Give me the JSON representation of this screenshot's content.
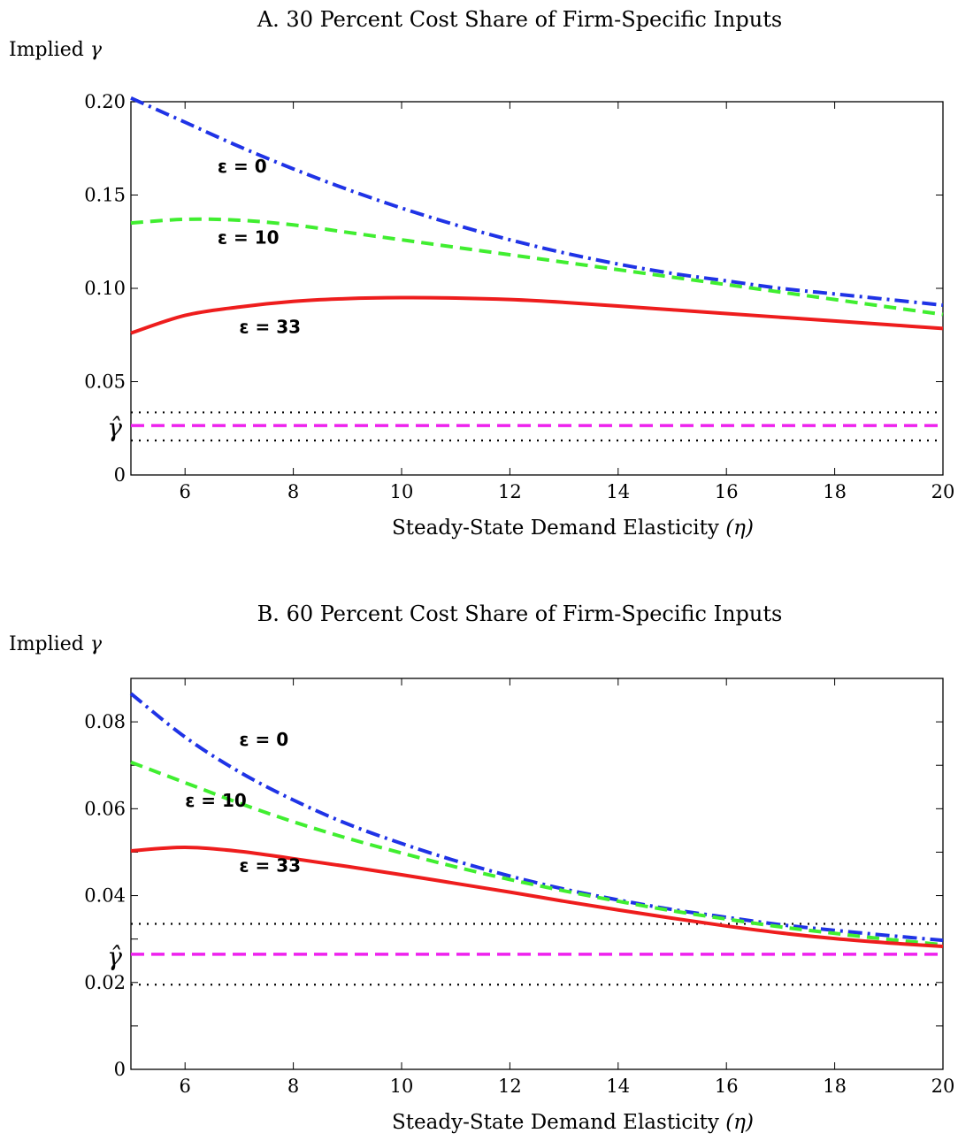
{
  "chart_data": [
    {
      "type": "line",
      "title": "A.  30 Percent Cost Share of Firm-Specific Inputs",
      "ylabel": "Implied",
      "ylabel_symbol": "γ",
      "xlabel": "Steady-State Demand Elasticity",
      "xlabel_symbol": "(η)",
      "xlim": [
        5,
        20
      ],
      "ylim": [
        0,
        0.2
      ],
      "xticks": [
        6,
        8,
        10,
        12,
        14,
        16,
        18,
        20
      ],
      "yticks": [
        0,
        0.05,
        0.1,
        0.15,
        0.2
      ],
      "ytick_labels": [
        "0",
        "0.05",
        "0.10",
        "0.15",
        "0.20"
      ],
      "grid": false,
      "hat_gamma_label": "γ̂",
      "hat_gamma": 0.0265,
      "band": [
        0.0185,
        0.0335
      ],
      "series": [
        {
          "label": "ε = 0",
          "color": "#1f33e6",
          "style": "dashdot",
          "x": [
            5,
            6,
            7,
            8,
            9,
            10,
            11,
            12,
            13,
            14,
            15,
            16,
            17,
            18,
            19,
            20
          ],
          "y": [
            0.202,
            0.189,
            0.176,
            0.164,
            0.153,
            0.143,
            0.134,
            0.126,
            0.119,
            0.113,
            0.108,
            0.104,
            0.1,
            0.097,
            0.094,
            0.091
          ],
          "label_at": [
            6.6,
            0.162
          ]
        },
        {
          "label": "ε = 10",
          "color": "#40ee30",
          "style": "dashed",
          "x": [
            5,
            6,
            7,
            8,
            9,
            10,
            11,
            12,
            13,
            14,
            15,
            16,
            17,
            18,
            19,
            20
          ],
          "y": [
            0.135,
            0.137,
            0.1365,
            0.134,
            0.13,
            0.126,
            0.122,
            0.118,
            0.114,
            0.11,
            0.106,
            0.102,
            0.098,
            0.094,
            0.09,
            0.086
          ],
          "label_at": [
            6.6,
            0.124
          ]
        },
        {
          "label": "ε = 33",
          "color": "#ee1d1d",
          "style": "solid",
          "x": [
            5,
            6,
            7,
            8,
            9,
            10,
            11,
            12,
            13,
            14,
            15,
            16,
            17,
            18,
            19,
            20
          ],
          "y": [
            0.076,
            0.0855,
            0.09,
            0.093,
            0.0945,
            0.095,
            0.0948,
            0.094,
            0.0925,
            0.0905,
            0.0885,
            0.0865,
            0.0845,
            0.0825,
            0.0805,
            0.0785
          ],
          "label_at": [
            7.0,
            0.076
          ]
        }
      ]
    },
    {
      "type": "line",
      "title": "B.  60 Percent Cost Share of Firm-Specific Inputs",
      "ylabel": "Implied",
      "ylabel_symbol": "γ",
      "xlabel": "Steady-State Demand Elasticity",
      "xlabel_symbol": "(η)",
      "xlim": [
        5,
        20
      ],
      "ylim": [
        0,
        0.09
      ],
      "xticks": [
        6,
        8,
        10,
        12,
        14,
        16,
        18,
        20
      ],
      "yticks": [
        0,
        0.02,
        0.04,
        0.06,
        0.08
      ],
      "ytick_labels": [
        "0",
        "0.02",
        "0.04",
        "0.06",
        "0.08"
      ],
      "minor_yticks": [
        0.01,
        0.03,
        0.05,
        0.07,
        0.09
      ],
      "grid": false,
      "hat_gamma_label": "γ̂",
      "hat_gamma": 0.0265,
      "band": [
        0.0195,
        0.0335
      ],
      "series": [
        {
          "label": "ε = 0",
          "color": "#1f33e6",
          "style": "dashdot",
          "x": [
            5,
            6,
            7,
            8,
            9,
            10,
            11,
            12,
            13,
            14,
            15,
            16,
            17,
            18,
            19,
            20
          ],
          "y": [
            0.0865,
            0.0765,
            0.0685,
            0.062,
            0.0565,
            0.052,
            0.048,
            0.0445,
            0.0415,
            0.039,
            0.0368,
            0.035,
            0.0333,
            0.032,
            0.0308,
            0.0297
          ],
          "label_at": [
            7.0,
            0.0745
          ]
        },
        {
          "label": "ε = 10",
          "color": "#40ee30",
          "style": "dashed",
          "x": [
            5,
            6,
            7,
            8,
            9,
            10,
            11,
            12,
            13,
            14,
            15,
            16,
            17,
            18,
            19,
            20
          ],
          "y": [
            0.0707,
            0.066,
            0.0613,
            0.057,
            0.0532,
            0.0498,
            0.0466,
            0.0437,
            0.0411,
            0.0387,
            0.0365,
            0.0346,
            0.0328,
            0.0313,
            0.0299,
            0.0287
          ],
          "label_at": [
            6.0,
            0.0605
          ]
        },
        {
          "label": "ε = 33",
          "color": "#ee1d1d",
          "style": "solid",
          "x": [
            5,
            6,
            7,
            8,
            9,
            10,
            11,
            12,
            13,
            14,
            15,
            16,
            17,
            18,
            19,
            20
          ],
          "y": [
            0.0503,
            0.0511,
            0.0502,
            0.0485,
            0.0467,
            0.0448,
            0.0428,
            0.0408,
            0.0387,
            0.0367,
            0.0348,
            0.033,
            0.0314,
            0.0301,
            0.0291,
            0.0283
          ],
          "label_at": [
            7.0,
            0.0455
          ]
        }
      ]
    }
  ]
}
